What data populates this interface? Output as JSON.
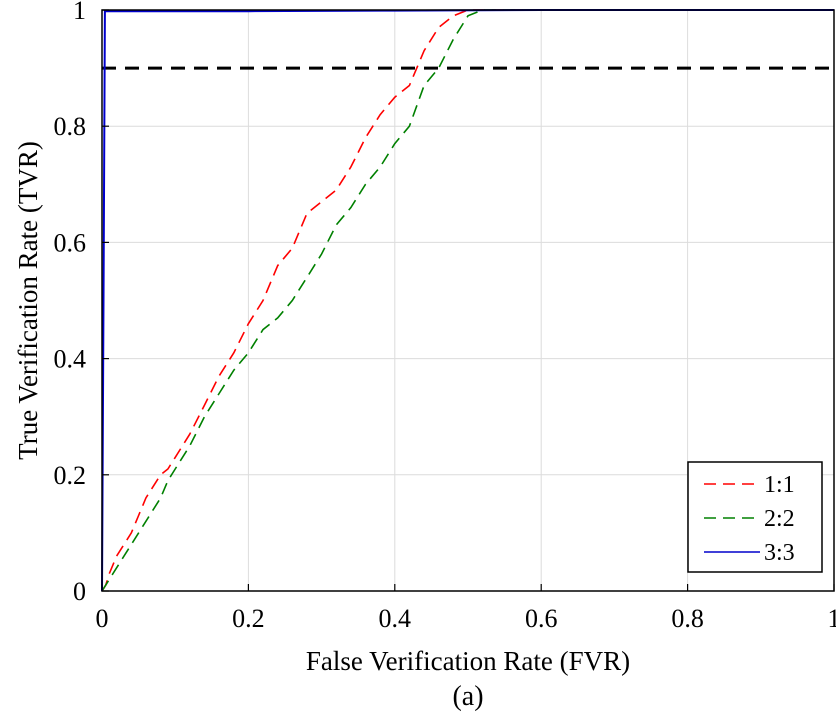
{
  "chart_data": {
    "type": "line",
    "title": "",
    "xlabel": "False Verification Rate (FVR)",
    "ylabel": "True Verification Rate (TVR)",
    "caption": "(a)",
    "xlim": [
      0,
      1
    ],
    "ylim": [
      0,
      1
    ],
    "xticks": [
      0,
      0.2,
      0.4,
      0.6,
      0.8,
      1
    ],
    "yticks": [
      0,
      0.2,
      0.4,
      0.6,
      0.8,
      1
    ],
    "xtick_labels": [
      "0",
      "0.2",
      "0.4",
      "0.6",
      "0.8",
      "1"
    ],
    "ytick_labels": [
      "0",
      "0.2",
      "0.4",
      "0.6",
      "0.8",
      "1"
    ],
    "grid": true,
    "legend_position": "bottom-right",
    "threshold": {
      "y": 0.9,
      "color": "#000000",
      "style": "dashed"
    },
    "series": [
      {
        "name": "1:1",
        "color": "#ff0000",
        "style": "dashed",
        "x": [
          0,
          0.005,
          0.01,
          0.02,
          0.03,
          0.04,
          0.05,
          0.06,
          0.07,
          0.08,
          0.09,
          0.1,
          0.12,
          0.14,
          0.16,
          0.18,
          0.2,
          0.22,
          0.24,
          0.26,
          0.28,
          0.3,
          0.32,
          0.34,
          0.36,
          0.38,
          0.4,
          0.42,
          0.44,
          0.46,
          0.48,
          0.5,
          0.52,
          0.6,
          0.8,
          1.0
        ],
        "y": [
          0,
          0.01,
          0.03,
          0.06,
          0.08,
          0.1,
          0.13,
          0.16,
          0.18,
          0.2,
          0.21,
          0.23,
          0.27,
          0.32,
          0.37,
          0.41,
          0.46,
          0.5,
          0.56,
          0.59,
          0.65,
          0.67,
          0.69,
          0.73,
          0.78,
          0.82,
          0.85,
          0.87,
          0.93,
          0.97,
          0.99,
          1.0,
          1.0,
          1.0,
          1.0,
          1.0
        ]
      },
      {
        "name": "2:2",
        "color": "#008000",
        "style": "dashed",
        "x": [
          0,
          0.005,
          0.01,
          0.02,
          0.03,
          0.04,
          0.05,
          0.06,
          0.07,
          0.08,
          0.09,
          0.1,
          0.12,
          0.14,
          0.16,
          0.18,
          0.2,
          0.22,
          0.24,
          0.26,
          0.28,
          0.3,
          0.32,
          0.34,
          0.36,
          0.38,
          0.4,
          0.42,
          0.44,
          0.46,
          0.48,
          0.5,
          0.52,
          0.6,
          0.8,
          1.0
        ],
        "y": [
          0,
          0.01,
          0.02,
          0.04,
          0.06,
          0.08,
          0.1,
          0.12,
          0.14,
          0.16,
          0.19,
          0.21,
          0.25,
          0.3,
          0.34,
          0.38,
          0.41,
          0.45,
          0.47,
          0.5,
          0.54,
          0.58,
          0.63,
          0.66,
          0.7,
          0.73,
          0.77,
          0.8,
          0.87,
          0.9,
          0.95,
          0.99,
          1.0,
          1.0,
          1.0,
          1.0
        ]
      },
      {
        "name": "3:3",
        "color": "#0000cc",
        "style": "solid",
        "x": [
          0,
          0.002,
          0.004,
          0.2,
          0.4,
          0.6,
          0.8,
          1.0
        ],
        "y": [
          0,
          0.5,
          0.998,
          0.998,
          0.999,
          1.0,
          1.0,
          1.0
        ]
      }
    ]
  }
}
